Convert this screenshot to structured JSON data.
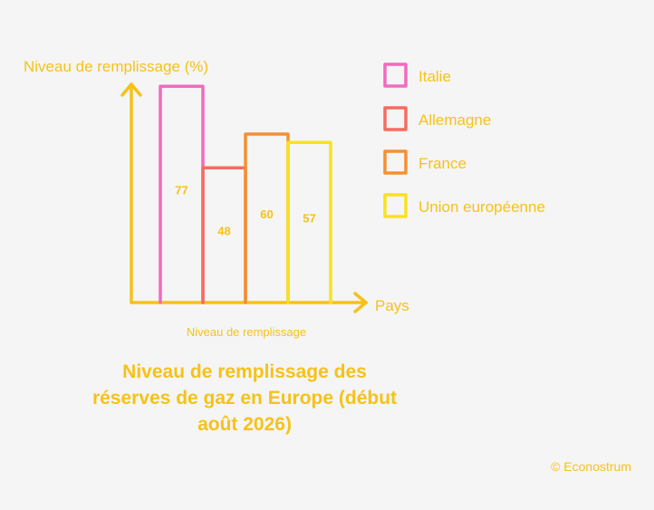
{
  "title_lines": [
    "Niveau de remplissage des",
    "réserves de gaz en Europe (début",
    "août 2026)"
  ],
  "credit": "© Econostrum",
  "chart_data": {
    "type": "bar",
    "title": "Niveau de remplissage des réserves de gaz en Europe (début août 2026)",
    "ylabel": "Niveau de remplissage (%)",
    "xlabel": "Pays",
    "x_subtitle": "Niveau de remplissage",
    "categories": [
      "Italie",
      "Allemagne",
      "France",
      "Union européenne"
    ],
    "values": [
      77,
      48,
      60,
      57
    ],
    "colors": [
      "#f06bbd",
      "#f76b5f",
      "#f49033",
      "#f9e21e"
    ],
    "axis_color": "#f6c218",
    "text_color": "#f6c218",
    "legend_position": "top-right",
    "grid": false
  }
}
